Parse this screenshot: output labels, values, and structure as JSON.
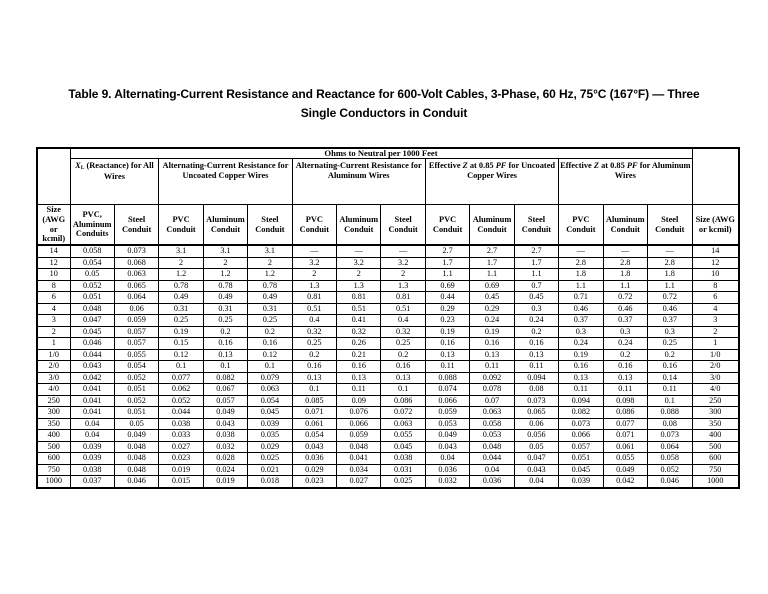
{
  "title": "Table 9. Alternating-Current Resistance and Reactance for 600-Volt Cables, 3-Phase, 60 Hz, 75°C (167°F) — Three Single Conductors in Conduit",
  "colors": {
    "text": "#000000",
    "border": "#000000",
    "background": "#ffffff"
  },
  "table": {
    "spanning_header": "Ohms to Neutral per 1000 Feet",
    "group_headers": [
      {
        "colspan": 2,
        "segments": [
          {
            "t": "X",
            "italic": true
          },
          {
            "t": "L",
            "sub": true
          },
          {
            "t": " (Reactance) for All Wires"
          }
        ]
      },
      {
        "colspan": 3,
        "segments": [
          {
            "t": "Alternating-Current Resistance for Uncoated Copper Wires"
          }
        ]
      },
      {
        "colspan": 3,
        "segments": [
          {
            "t": "Alternating-Current Resistance for Aluminum Wires"
          }
        ]
      },
      {
        "colspan": 3,
        "segments": [
          {
            "t": "Effective "
          },
          {
            "t": "Z",
            "italic": true
          },
          {
            "t": " at 0.85 "
          },
          {
            "t": "PF",
            "italic": true
          },
          {
            "t": " for Uncoated Copper Wires"
          }
        ]
      },
      {
        "colspan": 3,
        "segments": [
          {
            "t": "Effective "
          },
          {
            "t": "Z",
            "italic": true
          },
          {
            "t": " at 0.85 "
          },
          {
            "t": "PF",
            "italic": true
          },
          {
            "t": " for Aluminum Wires"
          }
        ]
      }
    ],
    "column_headers": [
      "Size (AWG or kcmil)",
      "PVC, Aluminum Conduits",
      "Steel Conduit",
      "PVC Conduit",
      "Aluminum Conduit",
      "Steel Conduit",
      "PVC Conduit",
      "Aluminum Conduit",
      "Steel Conduit",
      "PVC Conduit",
      "Aluminum Conduit",
      "Steel Conduit",
      "PVC Conduit",
      "Aluminum Conduit",
      "Steel Conduit",
      "Size (AWG or kcmil)"
    ],
    "rows": [
      [
        "14",
        "0.058",
        "0.073",
        "3.1",
        "3.1",
        "3.1",
        "—",
        "—",
        "—",
        "2.7",
        "2.7",
        "2.7",
        "—",
        "—",
        "—",
        "14"
      ],
      [
        "12",
        "0.054",
        "0.068",
        "2",
        "2",
        "2",
        "3.2",
        "3.2",
        "3.2",
        "1.7",
        "1.7",
        "1.7",
        "2.8",
        "2.8",
        "2.8",
        "12"
      ],
      [
        "10",
        "0.05",
        "0.063",
        "1.2",
        "1.2",
        "1.2",
        "2",
        "2",
        "2",
        "1.1",
        "1.1",
        "1.1",
        "1.8",
        "1.8",
        "1.8",
        "10"
      ],
      [
        "8",
        "0.052",
        "0.065",
        "0.78",
        "0.78",
        "0.78",
        "1.3",
        "1.3",
        "1.3",
        "0.69",
        "0.69",
        "0.7",
        "1.1",
        "1.1",
        "1.1",
        "8"
      ],
      [
        "6",
        "0.051",
        "0.064",
        "0.49",
        "0.49",
        "0.49",
        "0.81",
        "0.81",
        "0.81",
        "0.44",
        "0.45",
        "0.45",
        "0.71",
        "0.72",
        "0.72",
        "6"
      ],
      [
        "4",
        "0.048",
        "0.06",
        "0.31",
        "0.31",
        "0.31",
        "0.51",
        "0.51",
        "0.51",
        "0.29",
        "0.29",
        "0.3",
        "0.46",
        "0.46",
        "0.46",
        "4"
      ],
      [
        "3",
        "0.047",
        "0.059",
        "0.25",
        "0.25",
        "0.25",
        "0.4",
        "0.41",
        "0.4",
        "0.23",
        "0.24",
        "0.24",
        "0.37",
        "0.37",
        "0.37",
        "3"
      ],
      [
        "2",
        "0.045",
        "0.057",
        "0.19",
        "0.2",
        "0.2",
        "0.32",
        "0.32",
        "0.32",
        "0.19",
        "0.19",
        "0.2",
        "0.3",
        "0.3",
        "0.3",
        "2"
      ],
      [
        "1",
        "0.046",
        "0.057",
        "0.15",
        "0.16",
        "0.16",
        "0.25",
        "0.26",
        "0.25",
        "0.16",
        "0.16",
        "0.16",
        "0.24",
        "0.24",
        "0.25",
        "1"
      ],
      [
        "1/0",
        "0.044",
        "0.055",
        "0.12",
        "0.13",
        "0.12",
        "0.2",
        "0.21",
        "0.2",
        "0.13",
        "0.13",
        "0.13",
        "0.19",
        "0.2",
        "0.2",
        "1/0"
      ],
      [
        "2/0",
        "0.043",
        "0.054",
        "0.1",
        "0.1",
        "0.1",
        "0.16",
        "0.16",
        "0.16",
        "0.11",
        "0.11",
        "0.11",
        "0.16",
        "0.16",
        "0.16",
        "2/0"
      ],
      [
        "3/0",
        "0.042",
        "0.052",
        "0.077",
        "0.082",
        "0.079",
        "0.13",
        "0.13",
        "0.13",
        "0.088",
        "0.092",
        "0.094",
        "0.13",
        "0.13",
        "0.14",
        "3/0"
      ],
      [
        "4/0",
        "0.041",
        "0.051",
        "0.062",
        "0.067",
        "0.063",
        "0.1",
        "0.11",
        "0.1",
        "0.074",
        "0.078",
        "0.08",
        "0.11",
        "0.11",
        "0.11",
        "4/0"
      ],
      [
        "250",
        "0.041",
        "0.052",
        "0.052",
        "0.057",
        "0.054",
        "0.085",
        "0.09",
        "0.086",
        "0.066",
        "0.07",
        "0.073",
        "0.094",
        "0.098",
        "0.1",
        "250"
      ],
      [
        "300",
        "0.041",
        "0.051",
        "0.044",
        "0.049",
        "0.045",
        "0.071",
        "0.076",
        "0.072",
        "0.059",
        "0.063",
        "0.065",
        "0.082",
        "0.086",
        "0.088",
        "300"
      ],
      [
        "350",
        "0.04",
        "0.05",
        "0.038",
        "0.043",
        "0.039",
        "0.061",
        "0.066",
        "0.063",
        "0.053",
        "0.058",
        "0.06",
        "0.073",
        "0.077",
        "0.08",
        "350"
      ],
      [
        "400",
        "0.04",
        "0.049",
        "0.033",
        "0.038",
        "0.035",
        "0.054",
        "0.059",
        "0.055",
        "0.049",
        "0.053",
        "0.056",
        "0.066",
        "0.071",
        "0.073",
        "400"
      ],
      [
        "500",
        "0.039",
        "0.048",
        "0.027",
        "0.032",
        "0.029",
        "0.043",
        "0.048",
        "0.045",
        "0.043",
        "0.048",
        "0.05",
        "0.057",
        "0.061",
        "0.064",
        "500"
      ],
      [
        "600",
        "0.039",
        "0.048",
        "0.023",
        "0.028",
        "0.025",
        "0.036",
        "0.041",
        "0.038",
        "0.04",
        "0.044",
        "0.047",
        "0.051",
        "0.055",
        "0.058",
        "600"
      ],
      [
        "750",
        "0.038",
        "0.048",
        "0.019",
        "0.024",
        "0.021",
        "0.029",
        "0.034",
        "0.031",
        "0.036",
        "0.04",
        "0.043",
        "0.045",
        "0.049",
        "0.052",
        "750"
      ],
      [
        "1000",
        "0.037",
        "0.046",
        "0.015",
        "0.019",
        "0.018",
        "0.023",
        "0.027",
        "0.025",
        "0.032",
        "0.036",
        "0.04",
        "0.039",
        "0.042",
        "0.046",
        "1000"
      ]
    ]
  }
}
